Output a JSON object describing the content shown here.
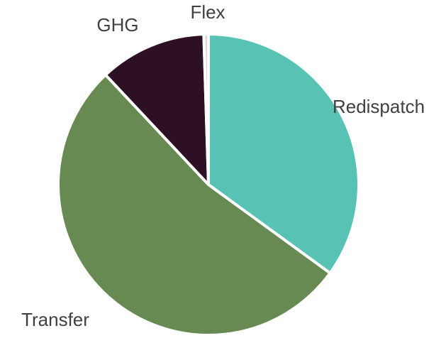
{
  "chart_data": {
    "type": "pie",
    "categories": [
      "Redispatch",
      "Transfer",
      "GHG",
      "Flex"
    ],
    "values": [
      35,
      53,
      11.5,
      0.5
    ],
    "colors": [
      "#58c2b5",
      "#668a52",
      "#2e1025",
      "#d9d9d9"
    ]
  }
}
